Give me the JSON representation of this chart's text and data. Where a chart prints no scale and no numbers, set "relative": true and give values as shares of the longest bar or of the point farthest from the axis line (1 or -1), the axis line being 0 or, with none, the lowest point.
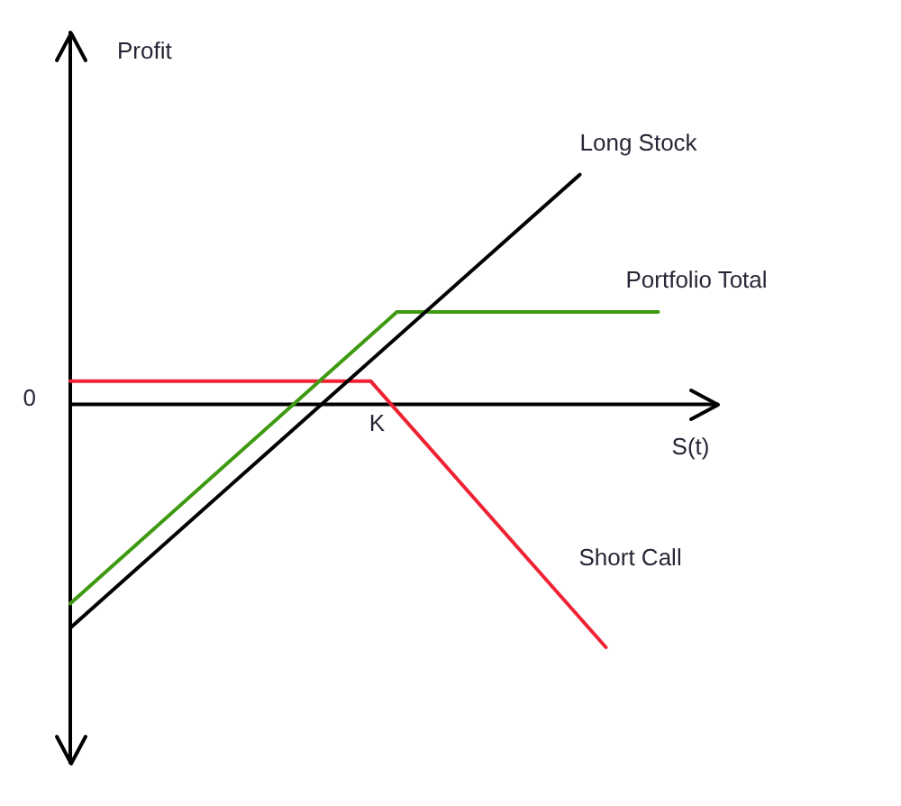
{
  "chart_data": {
    "type": "line",
    "relative": true,
    "xlabel": "S(t)",
    "ylabel": "Profit",
    "annotations": [
      "0",
      "K"
    ],
    "categories": [
      null,
      null,
      null,
      null,
      null,
      null,
      null,
      null,
      null,
      null,
      null,
      null,
      null,
      null,
      null,
      null,
      null,
      null,
      null,
      null,
      null,
      null,
      null,
      null,
      null,
      null,
      null,
      null,
      null,
      null,
      null,
      null,
      null,
      null,
      null,
      null,
      null,
      null,
      null,
      null,
      null,
      null,
      null,
      null,
      null,
      null,
      null,
      null,
      null,
      null
    ],
    "series": [
      {
        "name": "Long Stock",
        "color": "#000000",
        "values": [
          -0.92,
          null,
          null,
          null,
          null,
          null,
          null,
          null,
          null,
          null,
          null,
          null,
          null,
          null,
          null,
          null,
          null,
          null,
          null,
          null,
          null,
          null,
          null,
          null,
          null,
          null,
          null,
          null,
          null,
          null,
          null,
          null,
          null,
          null,
          null,
          null,
          null,
          null,
          null,
          0.945,
          null,
          null,
          null,
          null,
          null,
          null,
          null,
          null,
          null,
          null
        ]
      },
      {
        "name": "Portfolio Total",
        "color": "#3f9a12",
        "values": [
          -0.82,
          null,
          null,
          null,
          null,
          null,
          null,
          null,
          null,
          null,
          null,
          null,
          null,
          null,
          null,
          null,
          null,
          null,
          null,
          null,
          null,
          null,
          null,
          null,
          null,
          0.38,
          null,
          null,
          null,
          null,
          null,
          null,
          null,
          null,
          null,
          null,
          null,
          null,
          null,
          null,
          null,
          null,
          null,
          null,
          null,
          0.38,
          null,
          null,
          null,
          null
        ]
      },
      {
        "name": "Short Call",
        "color": "#ee2233",
        "values": [
          0.095,
          null,
          null,
          null,
          null,
          null,
          null,
          null,
          null,
          null,
          null,
          null,
          null,
          null,
          null,
          null,
          null,
          null,
          null,
          null,
          null,
          null,
          null,
          0.095,
          null,
          null,
          null,
          null,
          null,
          null,
          null,
          null,
          null,
          null,
          null,
          null,
          null,
          null,
          null,
          null,
          null,
          -1,
          null,
          null,
          null,
          null,
          null,
          null,
          null,
          null
        ]
      }
    ]
  }
}
